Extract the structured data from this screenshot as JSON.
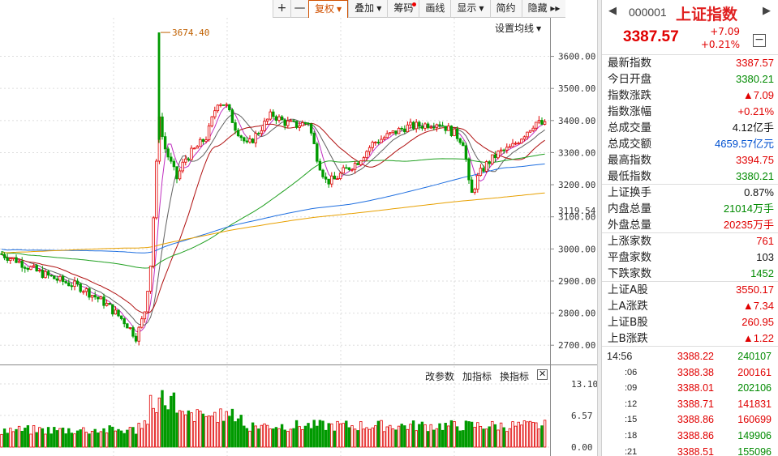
{
  "toolbar": [
    {
      "label": "+",
      "name": "zoom-in-button",
      "square": true
    },
    {
      "label": "—",
      "name": "zoom-out-button",
      "square": true
    },
    {
      "label": "复权",
      "name": "adjust-button",
      "active": true,
      "caret": true
    },
    {
      "label": "叠加",
      "name": "overlay-button",
      "caret": true
    },
    {
      "label": "筹码",
      "name": "chips-button",
      "dot": true
    },
    {
      "label": "画线",
      "name": "draw-line-button"
    },
    {
      "label": "显示",
      "name": "display-button",
      "caret": true
    },
    {
      "label": "简约",
      "name": "simple-button"
    },
    {
      "label": "隐藏 ▸▸",
      "name": "hide-button"
    }
  ],
  "set_ma_label": "设置均线",
  "indicator_bar": {
    "params": "改参数",
    "add": "加指标",
    "switch": "换指标"
  },
  "chart_data": [
    {
      "type": "candlestick",
      "peak_annotation": "3674.40",
      "last_marker": "3119.54",
      "ylim": [
        2640,
        3720
      ],
      "yticks": [
        "3600.00",
        "3500.00",
        "3400.00",
        "3300.00",
        "3200.00",
        "3100.00",
        "3000.00",
        "2900.00",
        "2800.00",
        "2700.00"
      ],
      "ma_colors": [
        "#c030c0",
        "#606060",
        "#b01010",
        "#20a020",
        "#1f6fe0",
        "#e8a000"
      ]
    },
    {
      "type": "bar",
      "yticks": [
        "13.10",
        "6.57",
        "0.00"
      ],
      "ylim": [
        0,
        13.1
      ]
    }
  ],
  "panel": {
    "code": "000001",
    "name": "上证指数",
    "price": "3387.57",
    "change": "+7.09",
    "change_pct": "+0.21%",
    "rows": [
      {
        "label": "最新指数",
        "value": "3387.57",
        "color": "red"
      },
      {
        "label": "今日开盘",
        "value": "3380.21",
        "color": "green"
      },
      {
        "label": "指数涨跌",
        "value": "▲7.09",
        "color": "red"
      },
      {
        "label": "指数涨幅",
        "value": "+0.21%",
        "color": "red"
      },
      {
        "label": "总成交量",
        "value": "4.12亿手",
        "color": "black"
      },
      {
        "label": "总成交额",
        "value": "4659.57亿元",
        "color": "blue"
      },
      {
        "label": "最高指数",
        "value": "3394.75",
        "color": "red"
      },
      {
        "label": "最低指数",
        "value": "3380.21",
        "color": "green",
        "sep": true
      },
      {
        "label": "上证换手",
        "value": "0.87%",
        "color": "black"
      },
      {
        "label": "内盘总量",
        "value": "21014万手",
        "color": "green"
      },
      {
        "label": "外盘总量",
        "value": "20235万手",
        "color": "red",
        "sep": true
      },
      {
        "label": "上涨家数",
        "value": "761",
        "color": "red"
      },
      {
        "label": "平盘家数",
        "value": "103",
        "color": "black"
      },
      {
        "label": "下跌家数",
        "value": "1452",
        "color": "green",
        "sep": true
      },
      {
        "label": "上证A股",
        "value": "3550.17",
        "color": "red"
      },
      {
        "label": "上A涨跌",
        "value": "▲7.34",
        "color": "red"
      },
      {
        "label": "上证B股",
        "value": "260.95",
        "color": "red"
      },
      {
        "label": "上B涨跌",
        "value": "▲1.22",
        "color": "red",
        "sep": true
      }
    ],
    "ticks": [
      {
        "time": "14:56",
        "price": "3388.22",
        "vol": "240107",
        "pc": "red",
        "vc": "green"
      },
      {
        "time": ":06",
        "price": "3388.38",
        "vol": "200161",
        "pc": "red",
        "vc": "red"
      },
      {
        "time": ":09",
        "price": "3388.01",
        "vol": "202106",
        "pc": "red",
        "vc": "green"
      },
      {
        "time": ":12",
        "price": "3388.71",
        "vol": "141831",
        "pc": "red",
        "vc": "red"
      },
      {
        "time": ":15",
        "price": "3388.86",
        "vol": "160699",
        "pc": "red",
        "vc": "red"
      },
      {
        "time": ":18",
        "price": "3388.86",
        "vol": "149906",
        "pc": "red",
        "vc": "green"
      },
      {
        "time": ":21",
        "price": "3388.51",
        "vol": "155096",
        "pc": "red",
        "vc": "green"
      }
    ]
  }
}
